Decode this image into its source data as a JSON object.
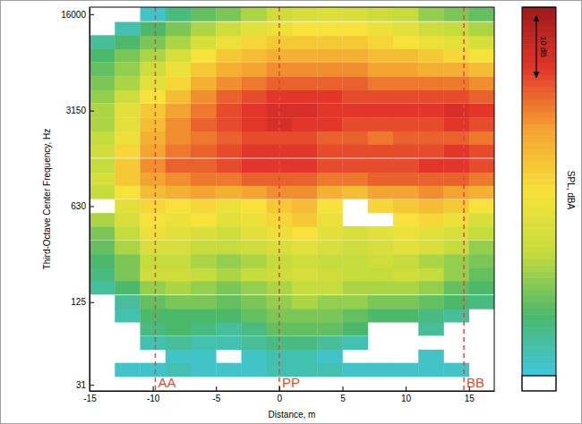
{
  "chart_data": {
    "type": "heatmap",
    "xlabel": "Distance, m",
    "ylabel": "Third-Octave Center Frequency, Hz",
    "log": "y",
    "xlim": [
      -15,
      17
    ],
    "ylim": [
      28,
      18000
    ],
    "xticks": [
      -15,
      -10,
      -5,
      0,
      5,
      10,
      15
    ],
    "yticks": [
      31,
      125,
      630,
      3150,
      16000
    ],
    "x": [
      -14,
      -12,
      -10,
      -8,
      -6,
      -4,
      -2,
      0,
      2,
      4,
      6,
      8,
      10,
      12,
      14,
      16
    ],
    "y": [
      31,
      40,
      50,
      63,
      80,
      100,
      125,
      160,
      200,
      250,
      315,
      400,
      500,
      630,
      800,
      1000,
      1250,
      1600,
      2000,
      2500,
      3150,
      4000,
      5000,
      6300,
      8000,
      10000,
      12500,
      16000
    ],
    "cells": [
      [
        null,
        null,
        null,
        null,
        null,
        null,
        null,
        null,
        null,
        null,
        null,
        null,
        null,
        null,
        null,
        null
      ],
      [
        null,
        22,
        22,
        24,
        22,
        22,
        22,
        24,
        24,
        24,
        22,
        22,
        22,
        22,
        22,
        null
      ],
      [
        null,
        null,
        null,
        22,
        22,
        null,
        22,
        24,
        24,
        22,
        null,
        null,
        null,
        22,
        null,
        null
      ],
      [
        null,
        null,
        24,
        26,
        24,
        24,
        26,
        28,
        28,
        26,
        24,
        null,
        null,
        null,
        null,
        null
      ],
      [
        null,
        null,
        28,
        30,
        28,
        26,
        28,
        32,
        32,
        32,
        30,
        null,
        null,
        26,
        null,
        null
      ],
      [
        null,
        24,
        30,
        30,
        30,
        30,
        32,
        34,
        34,
        34,
        32,
        30,
        30,
        28,
        26,
        null
      ],
      [
        null,
        26,
        32,
        34,
        34,
        32,
        34,
        36,
        38,
        36,
        36,
        34,
        34,
        32,
        30,
        28
      ],
      [
        26,
        30,
        36,
        38,
        36,
        34,
        36,
        38,
        40,
        40,
        38,
        38,
        38,
        36,
        32,
        30
      ],
      [
        28,
        34,
        42,
        42,
        40,
        38,
        40,
        42,
        44,
        42,
        40,
        40,
        42,
        40,
        36,
        32
      ],
      [
        30,
        34,
        40,
        40,
        38,
        36,
        38,
        40,
        42,
        40,
        40,
        42,
        40,
        38,
        36,
        34
      ],
      [
        32,
        38,
        44,
        44,
        40,
        40,
        42,
        44,
        46,
        44,
        42,
        44,
        46,
        44,
        40,
        36
      ],
      [
        34,
        40,
        48,
        46,
        44,
        42,
        46,
        48,
        50,
        46,
        44,
        46,
        48,
        46,
        44,
        40
      ],
      [
        38,
        44,
        50,
        48,
        50,
        46,
        48,
        52,
        54,
        48,
        null,
        null,
        50,
        52,
        48,
        44
      ],
      [
        null,
        46,
        52,
        50,
        52,
        48,
        50,
        54,
        56,
        50,
        null,
        52,
        54,
        56,
        54,
        50
      ],
      [
        40,
        50,
        56,
        58,
        60,
        58,
        60,
        62,
        62,
        58,
        56,
        60,
        60,
        62,
        60,
        58
      ],
      [
        44,
        54,
        60,
        62,
        64,
        64,
        66,
        66,
        66,
        64,
        64,
        66,
        66,
        66,
        66,
        64
      ],
      [
        40,
        54,
        62,
        66,
        66,
        68,
        70,
        70,
        70,
        68,
        68,
        68,
        68,
        70,
        70,
        68
      ],
      [
        42,
        52,
        60,
        64,
        66,
        68,
        70,
        70,
        70,
        68,
        68,
        68,
        68,
        68,
        70,
        68
      ],
      [
        40,
        48,
        58,
        62,
        64,
        66,
        68,
        68,
        68,
        66,
        66,
        64,
        66,
        66,
        66,
        64
      ],
      [
        38,
        46,
        56,
        62,
        66,
        68,
        70,
        72,
        70,
        70,
        68,
        68,
        68,
        68,
        70,
        68
      ],
      [
        38,
        46,
        54,
        60,
        64,
        68,
        70,
        72,
        72,
        70,
        70,
        70,
        70,
        70,
        72,
        70
      ],
      [
        36,
        42,
        50,
        56,
        62,
        66,
        68,
        70,
        70,
        70,
        68,
        68,
        68,
        68,
        68,
        66
      ],
      [
        34,
        38,
        46,
        52,
        58,
        62,
        64,
        66,
        66,
        66,
        66,
        64,
        64,
        64,
        64,
        62
      ],
      [
        32,
        36,
        42,
        48,
        54,
        58,
        60,
        62,
        62,
        62,
        62,
        60,
        60,
        58,
        58,
        56
      ],
      [
        30,
        34,
        38,
        44,
        50,
        54,
        56,
        58,
        58,
        58,
        58,
        56,
        56,
        54,
        52,
        50
      ],
      [
        26,
        30,
        34,
        38,
        44,
        48,
        52,
        54,
        54,
        54,
        54,
        52,
        50,
        48,
        46,
        44
      ],
      [
        null,
        24,
        30,
        34,
        38,
        42,
        46,
        48,
        50,
        50,
        50,
        48,
        46,
        42,
        40,
        38
      ],
      [
        null,
        null,
        22,
        28,
        32,
        34,
        38,
        42,
        44,
        45,
        44,
        42,
        40,
        36,
        34,
        32
      ]
    ],
    "colorbar": {
      "range": [
        20,
        80
      ],
      "label": "SPL, dBA",
      "scale_bar": {
        "value": 10,
        "label": "10 dB"
      }
    },
    "annotations": [
      {
        "label": "AA",
        "x": -9.8
      },
      {
        "label": "PP",
        "x": 0
      },
      {
        "label": "BB",
        "x": 14.6
      }
    ]
  }
}
